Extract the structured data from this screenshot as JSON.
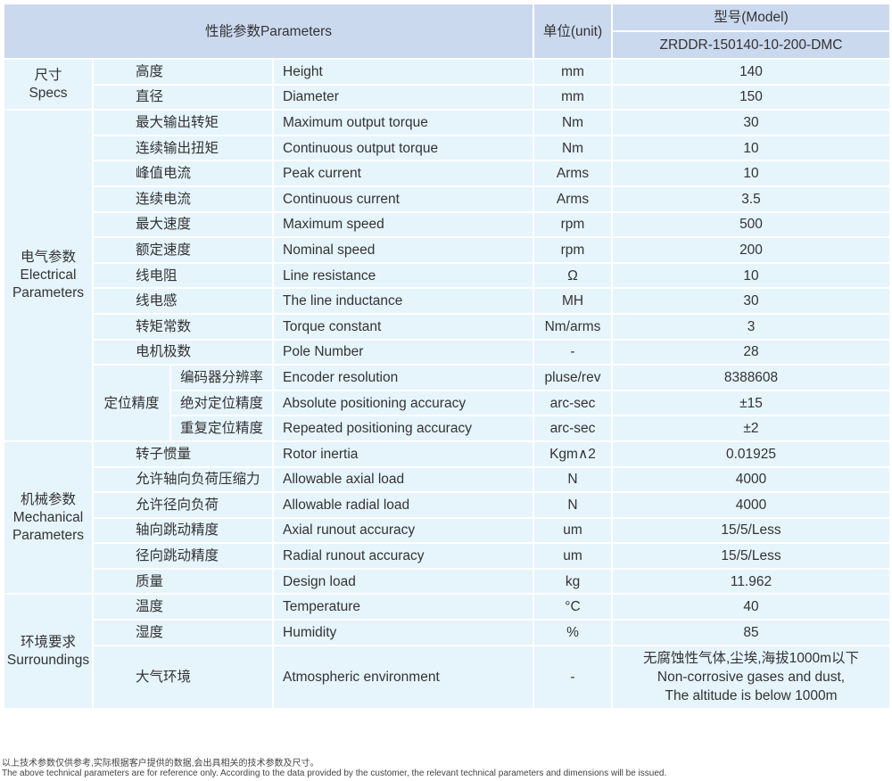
{
  "header": {
    "parameters": "性能参数Parameters",
    "unit": "单位(unit)",
    "model_label": "型号(Model)",
    "model": "ZRDDR-150140-10-200-DMC"
  },
  "groups": [
    {
      "cn": "尺寸",
      "en": "Specs",
      "rows": [
        {
          "cn": "高度",
          "en": "Height",
          "unit": "mm",
          "value": "140"
        },
        {
          "cn": "直径",
          "en": "Diameter",
          "unit": "mm",
          "value": "150"
        }
      ]
    },
    {
      "cn": "电气参数",
      "en": "Electrical Parameters",
      "sub_label": "定位精度",
      "rows": [
        {
          "cn": "最大输出转矩",
          "en": "Maximum output torque",
          "unit": "Nm",
          "value": "30"
        },
        {
          "cn": "连续输出扭矩",
          "en": "Continuous output torque",
          "unit": "Nm",
          "value": "10"
        },
        {
          "cn": "峰值电流",
          "en": "Peak current",
          "unit": "Arms",
          "value": "10"
        },
        {
          "cn": "连续电流",
          "en": "Continuous current",
          "unit": "Arms",
          "value": "3.5"
        },
        {
          "cn": "最大速度",
          "en": "Maximum speed",
          "unit": "rpm",
          "value": "500"
        },
        {
          "cn": "额定速度",
          "en": "Nominal speed",
          "unit": "rpm",
          "value": "200"
        },
        {
          "cn": "线电阻",
          "en": "Line resistance",
          "unit": "Ω",
          "value": "10"
        },
        {
          "cn": "线电感",
          "en": "The line inductance",
          "unit": "MH",
          "value": "30"
        },
        {
          "cn": "转矩常数",
          "en": "Torque constant",
          "unit": "Nm/arms",
          "value": "3"
        },
        {
          "cn": "电机极数",
          "en": "Pole Number",
          "unit": "-",
          "value": "28"
        },
        {
          "cn": "编码器分辨率",
          "en": "Encoder resolution",
          "unit": "pluse/rev",
          "value": "8388608",
          "sub": true
        },
        {
          "cn": "绝对定位精度",
          "en": "Absolute positioning accuracy",
          "unit": "arc-sec",
          "value": "±15",
          "sub": true
        },
        {
          "cn": "重复定位精度",
          "en": "Repeated positioning accuracy",
          "unit": "arc-sec",
          "value": "±2",
          "sub": true
        }
      ]
    },
    {
      "cn": "机械参数",
      "en": "Mechanical Parameters",
      "rows": [
        {
          "cn": "转子惯量",
          "en": "Rotor inertia",
          "unit": "Kgm∧2",
          "value": "0.01925"
        },
        {
          "cn": "允许轴向负荷压缩力",
          "en": "Allowable axial load",
          "unit": "N",
          "value": "4000"
        },
        {
          "cn": "允许径向负荷",
          "en": "Allowable radial load",
          "unit": "N",
          "value": "4000"
        },
        {
          "cn": "轴向跳动精度",
          "en": "Axial runout accuracy",
          "unit": "um",
          "value": "15/5/Less"
        },
        {
          "cn": "径向跳动精度",
          "en": "Radial runout accuracy",
          "unit": "um",
          "value": "15/5/Less"
        },
        {
          "cn": "质量",
          "en": "Design load",
          "unit": "kg",
          "value": "11.962"
        }
      ]
    },
    {
      "cn": "环境要求",
      "en": "Surroundings",
      "rows": [
        {
          "cn": "温度",
          "en": "Temperature",
          "unit": "°C",
          "value": "40"
        },
        {
          "cn": "湿度",
          "en": "Humidity",
          "unit": "%",
          "value": "85"
        },
        {
          "cn": "大气环境",
          "en": "Atmospheric environment",
          "unit": "-",
          "value_lines": [
            "无腐蚀性气体,尘埃,海拔1000m以下",
            "Non-corrosive gases and dust,",
            "The altitude is below 1000m"
          ]
        }
      ]
    }
  ],
  "footnote": {
    "cn": "以上技术参数仅供参考,实际根据客户提供的数据,会出具相关的技术参数及尺寸。",
    "en": "The above technical parameters are for reference only. According to the data provided by the customer, the relevant technical parameters and dimensions will be issued."
  }
}
